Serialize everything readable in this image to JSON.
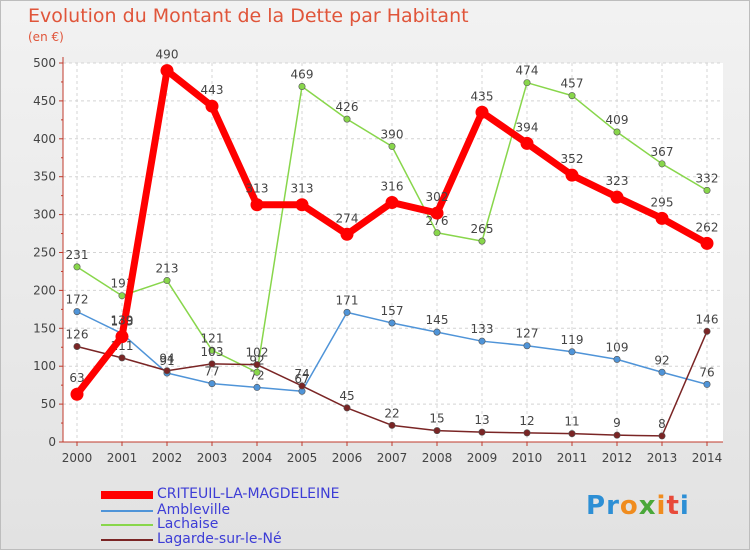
{
  "chart_data": {
    "type": "line",
    "title": "Evolution du Montant de la Dette par Habitant",
    "subtitle": "(en €)",
    "xlabel": "",
    "ylabel": "",
    "x": [
      "2000",
      "2001",
      "2002",
      "2003",
      "2004",
      "2005",
      "2006",
      "2007",
      "2008",
      "2009",
      "2010",
      "2011",
      "2012",
      "2013",
      "2014"
    ],
    "ylim": [
      0,
      500
    ],
    "yticks": [
      0,
      50,
      100,
      150,
      200,
      250,
      300,
      350,
      400,
      450,
      500
    ],
    "grid": true,
    "legend_position": "bottom-left",
    "series": [
      {
        "name": "CRITEUIL-LA-MAGDELEINE",
        "color": "#ff0000",
        "emphasis": "thick",
        "values": [
          63,
          139,
          490,
          443,
          313,
          313,
          274,
          316,
          302,
          435,
          394,
          352,
          323,
          295,
          262
        ]
      },
      {
        "name": "Ambleville",
        "color": "#4f94d8",
        "emphasis": "thin",
        "values": [
          172,
          143,
          91,
          77,
          72,
          67,
          171,
          157,
          145,
          133,
          127,
          119,
          109,
          92,
          76
        ]
      },
      {
        "name": "Lachaise",
        "color": "#88d64b",
        "emphasis": "thin",
        "values": [
          231,
          193,
          213,
          121,
          92,
          469,
          426,
          390,
          276,
          265,
          474,
          457,
          409,
          367,
          332
        ]
      },
      {
        "name": "Lagarde-sur-le-Né",
        "color": "#7a2525",
        "emphasis": "thin",
        "values": [
          126,
          111,
          94,
          103,
          102,
          74,
          45,
          22,
          15,
          13,
          12,
          11,
          9,
          8,
          146
        ]
      }
    ]
  },
  "brand": {
    "letters": [
      "P",
      "r",
      "o",
      "x",
      "i",
      "t",
      "i"
    ],
    "colors": [
      "#2d8fd5",
      "#2d8fd5",
      "#f08c1e",
      "#4aa83a",
      "#f08c1e",
      "#e84a3a",
      "#2d8fd5"
    ]
  }
}
